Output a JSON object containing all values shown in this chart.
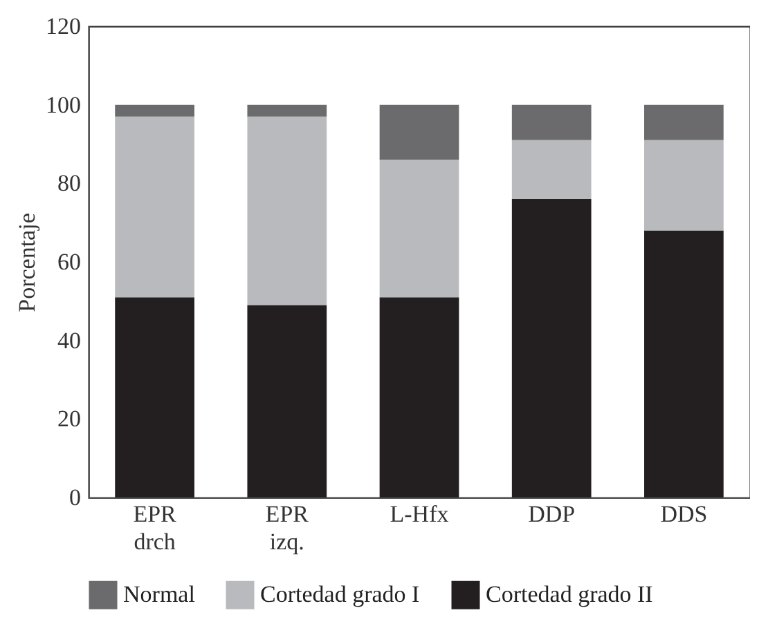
{
  "chart_data": {
    "type": "bar",
    "stacked": true,
    "ylabel": "Porcentaje",
    "categories": [
      "EPR drch",
      "EPR izq.",
      "L-Hfx",
      "DDP",
      "DDS"
    ],
    "series": [
      {
        "name": "Cortedad grado II",
        "color": "#231f20",
        "values": [
          51,
          49,
          51,
          76,
          68
        ]
      },
      {
        "name": "Cortedad grado I",
        "color": "#b9babd",
        "values": [
          46,
          48,
          35,
          15,
          23
        ]
      },
      {
        "name": "Normal",
        "color": "#6b6b6d",
        "values": [
          3,
          3,
          14,
          9,
          9
        ]
      }
    ],
    "ylim": [
      0,
      120
    ],
    "yticks": [
      0,
      20,
      40,
      60,
      80,
      100,
      120
    ],
    "grid": false,
    "legend": "bottom"
  }
}
